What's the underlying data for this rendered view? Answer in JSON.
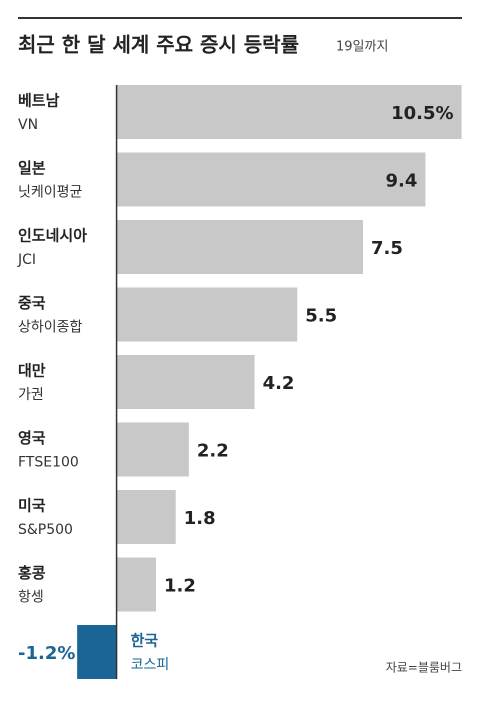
{
  "chart_data": {
    "type": "hbar",
    "title": "최근 한 달 세계 주요 증시 등락률",
    "subtitle": "19일까지",
    "categories": [
      "베트남",
      "일본",
      "인도네시아",
      "중국",
      "대만",
      "영국",
      "미국",
      "홍콩",
      "한국"
    ],
    "indices": [
      "VN",
      "닛케이평균",
      "JCI",
      "상하이종합",
      "가권",
      "FTSE100",
      "S&P500",
      "항셍",
      "코스피"
    ],
    "values": [
      10.5,
      9.4,
      7.5,
      5.5,
      4.2,
      2.2,
      1.8,
      1.2,
      -1.2
    ],
    "value_labels": [
      "10.5%",
      "9.4",
      "7.5",
      "5.5",
      "4.2",
      "2.2",
      "1.8",
      "1.2",
      "-1.2%"
    ],
    "colors": [
      "#c8c8c8",
      "#c8c8c8",
      "#c8c8c8",
      "#c8c8c8",
      "#c8c8c8",
      "#c8c8c8",
      "#c8c8c8",
      "#c8c8c8",
      "#1a6496"
    ],
    "xlim": [
      -3,
      11
    ],
    "source": "자료=블룸버그"
  }
}
